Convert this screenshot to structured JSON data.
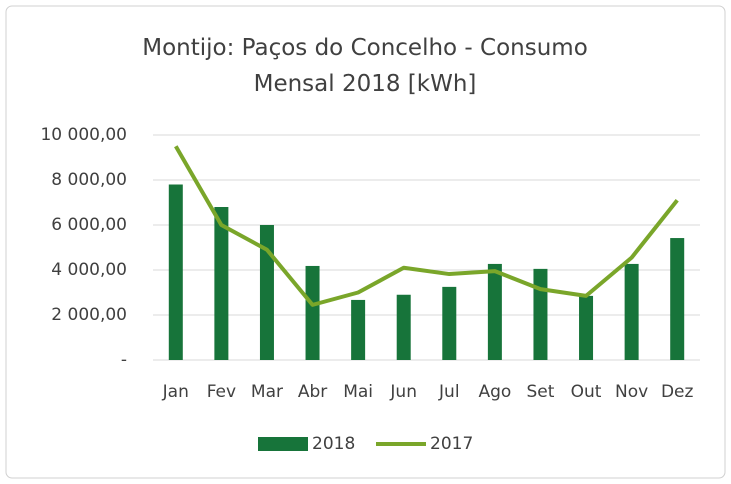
{
  "chart_data": {
    "type": "bar",
    "title": "Montijo: Paços do Concelho - Consumo Mensal 2018 [kWh]",
    "categories": [
      "Jan",
      "Fev",
      "Mar",
      "Abr",
      "Mai",
      "Jun",
      "Jul",
      "Ago",
      "Set",
      "Out",
      "Nov",
      "Dez"
    ],
    "series": [
      {
        "name": "2018",
        "type": "bar",
        "color": "#17743a",
        "values": [
          7800,
          6800,
          6000,
          4180,
          2670,
          2900,
          3250,
          4270,
          4050,
          2850,
          4270,
          5420
        ]
      },
      {
        "name": "2017",
        "type": "line",
        "color": "#7aa62a",
        "values": [
          9500,
          6000,
          4900,
          2450,
          3000,
          4100,
          3820,
          3950,
          3150,
          2850,
          4550,
          7100
        ]
      }
    ],
    "ylim": [
      0,
      10000
    ],
    "yticks": [
      {
        "value": 0,
        "label": "-"
      },
      {
        "value": 2000,
        "label": "2 000,00"
      },
      {
        "value": 4000,
        "label": "4 000,00"
      },
      {
        "value": 6000,
        "label": "6 000,00"
      },
      {
        "value": 8000,
        "label": "8 000,00"
      },
      {
        "value": 10000,
        "label": "10 000,00"
      }
    ],
    "grid": true,
    "legend": "bottom"
  }
}
